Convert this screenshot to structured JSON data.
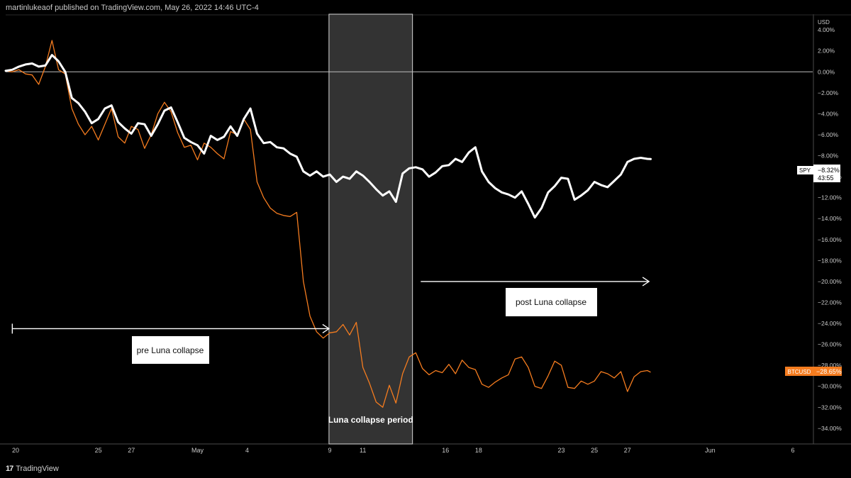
{
  "header": {
    "publish_line": "martinlukeaof published on TradingView.com, May 26, 2022 14:46 UTC-4"
  },
  "footer": {
    "brand_logo": "17",
    "brand_name": "TradingView"
  },
  "colors": {
    "spy": "#ffffff",
    "btc": "#f57c1f",
    "shade": "#333333",
    "bg": "#000000",
    "axis_text": "#c9c9c9"
  },
  "chart_data": {
    "type": "line",
    "title": "",
    "ylabel": "USD",
    "y_unit": "%",
    "ylim": [
      -35.5,
      5.5
    ],
    "y_ticks": [
      "4.00%",
      "2.00%",
      "0.00%",
      "−2.00%",
      "−4.00%",
      "−6.00%",
      "−8.00%",
      "−10.00%",
      "−12.00%",
      "−14.00%",
      "−16.00%",
      "−18.00%",
      "−20.00%",
      "−22.00%",
      "−24.00%",
      "−26.00%",
      "−28.00%",
      "−30.00%",
      "−32.00%",
      "−34.00%"
    ],
    "y_tick_values": [
      4,
      2,
      0,
      -2,
      -4,
      -6,
      -8,
      -10,
      -12,
      -14,
      -16,
      -18,
      -20,
      -22,
      -24,
      -26,
      -28,
      -30,
      -32,
      -34
    ],
    "x_axis": {
      "unit": "days since Apr 20, 2022",
      "range": [
        -0.6,
        48.2
      ],
      "labels": [
        "20",
        "25",
        "27",
        "May",
        "4",
        "9",
        "11",
        "16",
        "18",
        "23",
        "25",
        "27",
        "Jun",
        "6"
      ],
      "label_positions": [
        0,
        5,
        7,
        11,
        14,
        19,
        21,
        26,
        28,
        33,
        35,
        37,
        42,
        47
      ]
    },
    "zero_line": 0,
    "shaded_region": {
      "label": "Luna collapse period",
      "x_start": 18.95,
      "x_end": 24.0
    },
    "annotations": [
      {
        "name": "pre-luna",
        "label": "pre Luna collapse",
        "arrow_x": [
          -0.2,
          18.95
        ],
        "arrow_y": -24.5
      },
      {
        "name": "post-luna",
        "label": "post Luna collapse",
        "arrow_x": [
          24.5,
          38.3
        ],
        "arrow_y": -20.0
      }
    ],
    "series": [
      {
        "name": "SPY",
        "label_value": "−8.32%",
        "sub_value": "43:55",
        "x": [
          -0.6,
          -0.2,
          0.2,
          0.6,
          1.0,
          1.4,
          1.8,
          2.2,
          2.6,
          3.0,
          3.4,
          3.8,
          4.2,
          4.6,
          5.0,
          5.4,
          5.8,
          6.2,
          6.6,
          7.0,
          7.4,
          7.8,
          8.2,
          8.6,
          9.0,
          9.4,
          9.8,
          10.2,
          10.6,
          11.0,
          11.4,
          11.8,
          12.2,
          12.6,
          13.0,
          13.4,
          13.8,
          14.2,
          14.6,
          15.0,
          15.4,
          15.8,
          16.2,
          16.6,
          17.0,
          17.4,
          17.8,
          18.2,
          18.6,
          19.0,
          19.4,
          19.8,
          20.2,
          20.6,
          21.0,
          21.4,
          21.8,
          22.2,
          22.6,
          23.0,
          23.4,
          23.8,
          24.2,
          24.6,
          25.0,
          25.4,
          25.8,
          26.2,
          26.6,
          27.0,
          27.4,
          27.8,
          28.2,
          28.6,
          29.0,
          29.4,
          29.8,
          30.2,
          30.6,
          31.0,
          31.4,
          31.8,
          32.2,
          32.6,
          33.0,
          33.4,
          33.8,
          34.2,
          34.6,
          35.0,
          35.4,
          35.8,
          36.2,
          36.6,
          37.0,
          37.4,
          37.8,
          38.2,
          38.4
        ],
        "values": [
          0.1,
          0.2,
          0.5,
          0.7,
          0.8,
          0.5,
          0.6,
          1.6,
          1.0,
          0.0,
          -2.5,
          -3.0,
          -3.8,
          -4.9,
          -4.5,
          -3.5,
          -3.2,
          -4.8,
          -5.4,
          -5.9,
          -4.9,
          -5.0,
          -6.1,
          -5.0,
          -3.7,
          -3.4,
          -4.8,
          -6.3,
          -6.7,
          -7.0,
          -7.8,
          -6.1,
          -6.5,
          -6.2,
          -5.2,
          -6.1,
          -4.5,
          -3.5,
          -5.9,
          -6.8,
          -6.7,
          -7.2,
          -7.3,
          -7.8,
          -8.1,
          -9.5,
          -9.9,
          -9.5,
          -10.0,
          -9.8,
          -10.5,
          -10.0,
          -10.2,
          -9.5,
          -9.9,
          -10.5,
          -11.2,
          -11.8,
          -11.4,
          -12.4,
          -9.7,
          -9.2,
          -9.1,
          -9.3,
          -10.0,
          -9.6,
          -9.0,
          -8.9,
          -8.3,
          -8.6,
          -7.7,
          -7.2,
          -9.5,
          -10.5,
          -11.1,
          -11.5,
          -11.7,
          -12.0,
          -11.4,
          -12.6,
          -13.9,
          -13.0,
          -11.5,
          -10.9,
          -10.1,
          -10.2,
          -12.2,
          -11.8,
          -11.3,
          -10.5,
          -10.8,
          -11.0,
          -10.4,
          -9.8,
          -8.6,
          -8.3,
          -8.2,
          -8.3,
          -8.32
        ]
      },
      {
        "name": "BTCUSD",
        "label_value": "−28.65%",
        "x": [
          -0.6,
          -0.2,
          0.2,
          0.6,
          1.0,
          1.4,
          1.8,
          2.2,
          2.6,
          3.0,
          3.4,
          3.8,
          4.2,
          4.6,
          5.0,
          5.4,
          5.8,
          6.2,
          6.6,
          7.0,
          7.4,
          7.8,
          8.2,
          8.6,
          9.0,
          9.4,
          9.8,
          10.2,
          10.6,
          11.0,
          11.4,
          11.8,
          12.2,
          12.6,
          13.0,
          13.4,
          13.8,
          14.2,
          14.6,
          15.0,
          15.4,
          15.8,
          16.2,
          16.6,
          17.0,
          17.4,
          17.8,
          18.2,
          18.6,
          19.0,
          19.4,
          19.8,
          20.2,
          20.6,
          21.0,
          21.4,
          21.8,
          22.2,
          22.6,
          23.0,
          23.4,
          23.8,
          24.2,
          24.6,
          25.0,
          25.4,
          25.8,
          26.2,
          26.6,
          27.0,
          27.4,
          27.8,
          28.2,
          28.6,
          29.0,
          29.4,
          29.8,
          30.2,
          30.6,
          31.0,
          31.4,
          31.8,
          32.2,
          32.6,
          33.0,
          33.4,
          33.8,
          34.2,
          34.6,
          35.0,
          35.4,
          35.8,
          36.2,
          36.6,
          37.0,
          37.4,
          37.8,
          38.2,
          38.4
        ],
        "values": [
          0.1,
          0.0,
          0.2,
          -0.2,
          -0.3,
          -1.2,
          0.5,
          3.0,
          0.2,
          -0.2,
          -3.5,
          -5.0,
          -6.0,
          -5.2,
          -6.5,
          -5.0,
          -3.5,
          -6.2,
          -6.8,
          -5.2,
          -5.5,
          -7.3,
          -6.0,
          -4.0,
          -2.9,
          -3.8,
          -5.8,
          -7.2,
          -7.0,
          -8.4,
          -6.8,
          -7.2,
          -7.8,
          -8.3,
          -5.7,
          -6.0,
          -4.5,
          -5.5,
          -10.5,
          -12.0,
          -13.0,
          -13.5,
          -13.7,
          -13.8,
          -13.4,
          -20.0,
          -23.3,
          -24.8,
          -25.4,
          -24.9,
          -24.8,
          -24.1,
          -25.1,
          -23.9,
          -28.2,
          -29.7,
          -31.5,
          -32.0,
          -29.9,
          -31.6,
          -28.8,
          -27.2,
          -26.8,
          -28.3,
          -28.9,
          -28.5,
          -28.7,
          -27.9,
          -28.8,
          -27.5,
          -28.2,
          -28.4,
          -29.8,
          -30.1,
          -29.6,
          -29.2,
          -28.9,
          -27.4,
          -27.2,
          -28.2,
          -30.0,
          -30.2,
          -29.0,
          -27.6,
          -28.0,
          -30.1,
          -30.2,
          -29.5,
          -29.8,
          -29.5,
          -28.6,
          -28.8,
          -29.2,
          -28.6,
          -30.5,
          -29.1,
          -28.6,
          -28.5,
          -28.65
        ]
      }
    ]
  }
}
